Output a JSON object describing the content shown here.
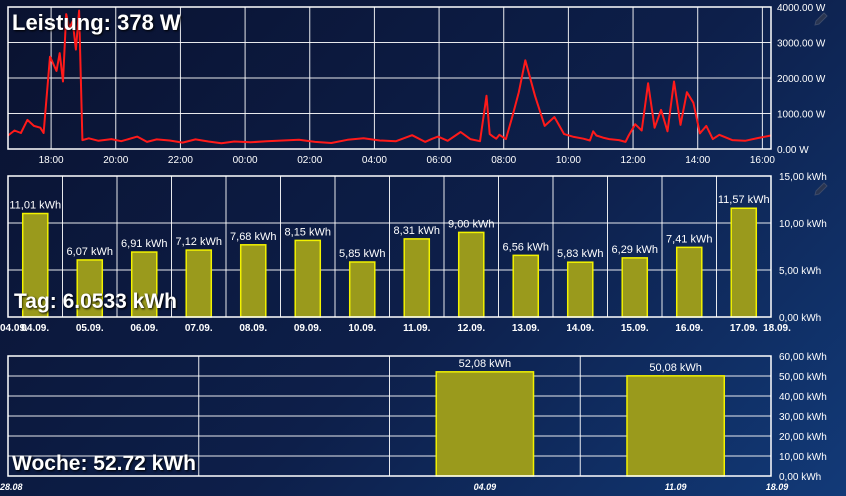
{
  "header": {
    "power_title": "Leistung: 378 W",
    "day_title": "Tag: 6.0533 kWh",
    "week_title": "Woche: 52.72 kWh"
  },
  "colors": {
    "line": "#ff1a1a",
    "bar_fill": "#9a9a1c",
    "bar_stroke": "#f2f200",
    "grid": "#ffffff"
  },
  "icons": [
    "pencil-icon"
  ],
  "chart_data": [
    {
      "type": "line",
      "name": "power",
      "x_unit": "hours since 16:40 (first day)",
      "xlim": [
        0,
        23.6
      ],
      "ylim": [
        0,
        4000
      ],
      "x_tick_labels": [
        "18:00",
        "20:00",
        "22:00",
        "00:00",
        "02:00",
        "04:00",
        "06:00",
        "08:00",
        "10:00",
        "12:00",
        "14:00",
        "16:00"
      ],
      "y_tick_labels": [
        "4000.00 W",
        "3000.00 W",
        "2000.00 W",
        "1000.00 W",
        "0.00 W"
      ],
      "series": [
        {
          "x": [
            0.0,
            0.2,
            0.4,
            0.6,
            0.8,
            1.0,
            1.1,
            1.3,
            1.5,
            1.6,
            1.7,
            1.8,
            1.9,
            2.0,
            2.1,
            2.2,
            2.3,
            2.5,
            2.8,
            3.2,
            3.5,
            4.0,
            4.3,
            4.6,
            5.0,
            5.4,
            5.8,
            6.2,
            6.6,
            7.0,
            7.5,
            8.0,
            8.5,
            9.0,
            9.5,
            10.0,
            10.5,
            11.0,
            11.5,
            12.0,
            12.5,
            12.9,
            13.1,
            13.3,
            13.6,
            14.0,
            14.3,
            14.6,
            14.8,
            14.9,
            15.0,
            15.1,
            15.2,
            15.4,
            15.6,
            15.8,
            16.0,
            16.3,
            16.6,
            16.9,
            17.2,
            17.5,
            17.8,
            18.0,
            18.1,
            18.2,
            18.4,
            18.6,
            18.9,
            19.1,
            19.2,
            19.4,
            19.6,
            19.8,
            20.0,
            20.2,
            20.4,
            20.6,
            20.8,
            21.0,
            21.2,
            21.4,
            21.6,
            21.8,
            22.0,
            22.4,
            22.8,
            23.2,
            23.6
          ],
          "y": [
            380,
            520,
            450,
            820,
            650,
            600,
            450,
            2600,
            2200,
            2700,
            1900,
            3800,
            3400,
            3600,
            2800,
            3900,
            250,
            300,
            230,
            280,
            220,
            350,
            200,
            270,
            240,
            180,
            270,
            210,
            160,
            210,
            190,
            220,
            240,
            260,
            200,
            170,
            260,
            300,
            240,
            220,
            390,
            200,
            280,
            350,
            230,
            480,
            280,
            220,
            1500,
            420,
            350,
            290,
            400,
            280,
            920,
            1600,
            2500,
            1500,
            650,
            900,
            420,
            340,
            290,
            240,
            500,
            380,
            320,
            280,
            250,
            200,
            380,
            700,
            520,
            1850,
            600,
            1100,
            500,
            1900,
            680,
            1600,
            1300,
            440,
            650,
            280,
            400,
            250,
            230,
            310,
            380
          ]
        }
      ]
    },
    {
      "type": "bar",
      "name": "daily energy",
      "categories": [
        "04.09.",
        "05.09.",
        "06.09.",
        "07.09.",
        "08.09.",
        "09.09.",
        "10.09.",
        "11.09.",
        "12.09.",
        "13.09.",
        "14.09.",
        "15.09.",
        "16.09.",
        "17.09."
      ],
      "values": [
        11.01,
        6.07,
        6.91,
        7.12,
        7.68,
        8.15,
        5.85,
        8.31,
        9.0,
        6.56,
        5.83,
        6.29,
        7.41,
        11.57
      ],
      "data_labels": [
        "11,01 kWh",
        "6,07 kWh",
        "6,91 kWh",
        "7,12 kWh",
        "7,68 kWh",
        "8,15 kWh",
        "5,85 kWh",
        "8,31 kWh",
        "9,00 kWh",
        "6,56 kWh",
        "5,83 kWh",
        "6,29 kWh",
        "7,41 kWh",
        "11,57 kWh"
      ],
      "x_edge_labels": [
        "04.09.",
        "18.09."
      ],
      "ylim": [
        0,
        15
      ],
      "y_tick_labels": [
        "15,00 kWh",
        "10,00 kWh",
        "5,00 kWh",
        "0,00 kWh"
      ]
    },
    {
      "type": "bar",
      "name": "weekly energy",
      "categories": [
        "04.09",
        "11.09"
      ],
      "values": [
        52.08,
        50.08
      ],
      "data_labels": [
        "52,08 kWh",
        "50,08 kWh"
      ],
      "x_edge_labels": [
        "28.08",
        "18.09"
      ],
      "ylim": [
        0,
        60
      ],
      "y_tick_labels": [
        "60,00 kWh",
        "50,00 kWh",
        "40,00 kWh",
        "30,00 kWh",
        "20,00 kWh",
        "10,00 kWh",
        "0,00 kWh"
      ]
    }
  ]
}
